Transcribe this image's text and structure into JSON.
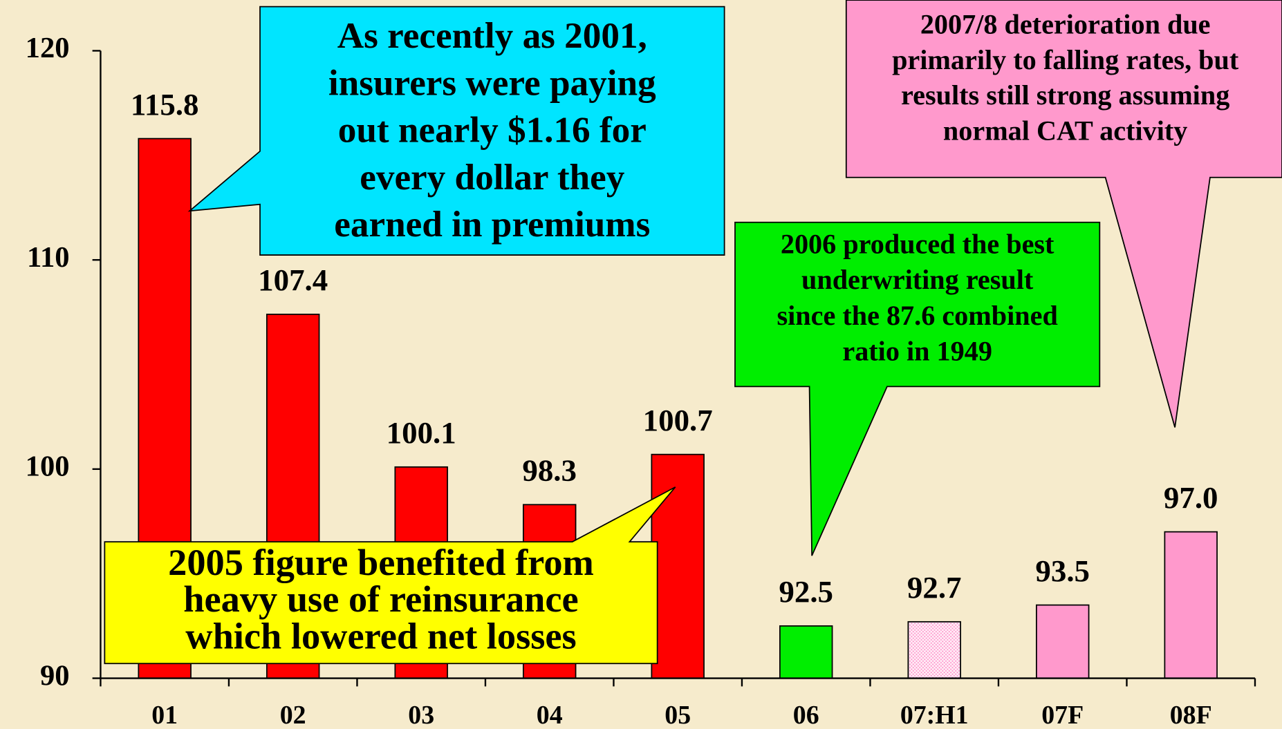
{
  "chart_data": {
    "type": "bar",
    "categories": [
      "01",
      "02",
      "03",
      "04",
      "05",
      "06",
      "07:H1",
      "07F",
      "08F"
    ],
    "values": [
      115.8,
      107.4,
      100.1,
      98.3,
      100.7,
      92.5,
      92.7,
      93.5,
      97.0
    ],
    "value_labels": [
      "115.8",
      "107.4",
      "100.1",
      "98.3",
      "100.7",
      "92.5",
      "92.7",
      "93.5",
      "97.0"
    ],
    "colors": [
      "#ff0000",
      "#ff0000",
      "#ff0000",
      "#ff0000",
      "#ff0000",
      "#00ee00",
      "#ffd6ec",
      "#ff99cc",
      "#ff99cc"
    ],
    "ylim": [
      90,
      120
    ],
    "yticks": [
      90,
      100,
      110,
      120
    ],
    "annotations": [
      {
        "lines": [
          "As recently as 2001,",
          "insurers were paying",
          "out nearly $1.16 for",
          "every dollar they",
          "earned in premiums"
        ],
        "color": "#00e5ff"
      },
      {
        "lines": [
          "2007/8 deterioration due",
          "primarily to falling rates, but",
          "results still strong assuming",
          "normal  CAT activity"
        ],
        "color": "#ff99cc"
      },
      {
        "lines": [
          "2006  produced the best",
          "underwriting result",
          "since the 87.6 combined",
          "ratio in 1949"
        ],
        "color": "#00ee00"
      },
      {
        "lines": [
          "2005 figure benefited from",
          "heavy use of reinsurance",
          "which lowered net losses"
        ],
        "color": "#ffff00"
      }
    ]
  }
}
